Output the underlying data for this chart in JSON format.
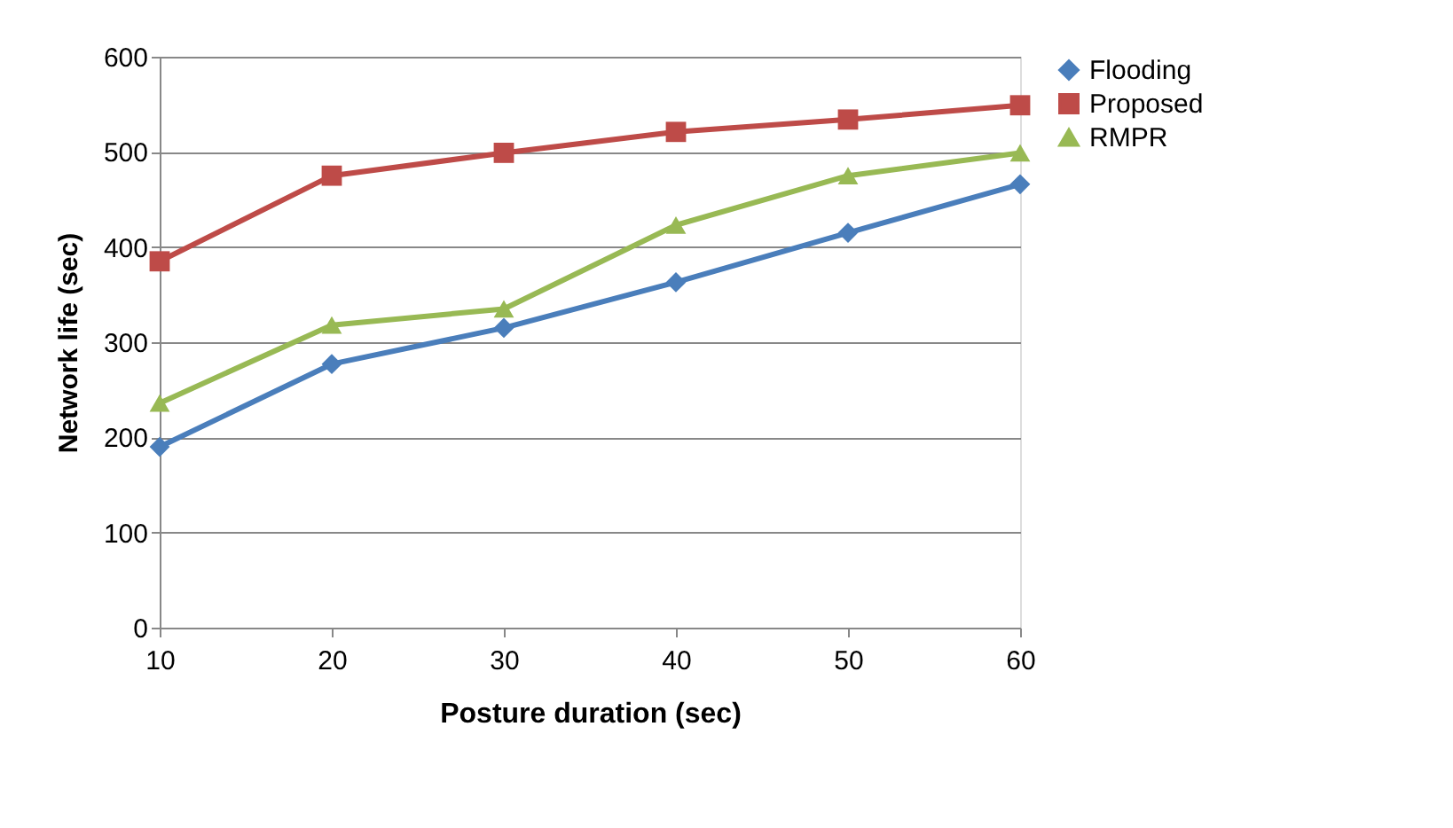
{
  "chart_data": {
    "type": "line",
    "xlabel": "Posture duration (sec)",
    "ylabel": "Network life (sec)",
    "categories": [
      "10",
      "20",
      "30",
      "40",
      "50",
      "60"
    ],
    "series": [
      {
        "name": "Flooding",
        "color": "#4a7ebb",
        "marker": "diamond",
        "values": [
          190,
          277,
          315,
          363,
          415,
          466
        ]
      },
      {
        "name": "Proposed",
        "color": "#be4b48",
        "marker": "square",
        "values": [
          385,
          475,
          499,
          521,
          534,
          549
        ]
      },
      {
        "name": "RMPR",
        "color": "#98b954",
        "marker": "triangle",
        "values": [
          236,
          318,
          335,
          423,
          475,
          499
        ]
      }
    ],
    "ylim": [
      0,
      600
    ],
    "yticks": [
      0,
      100,
      200,
      300,
      400,
      500,
      600
    ],
    "grid": "y",
    "legend": "right",
    "line_style": "solid"
  }
}
